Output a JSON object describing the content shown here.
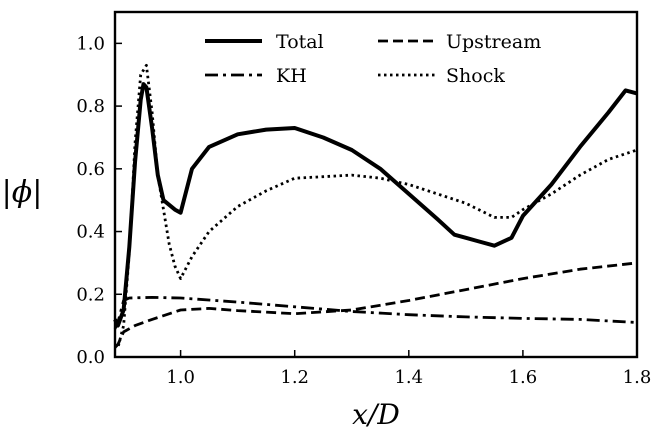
{
  "chart_data": {
    "type": "line",
    "title": "",
    "xlabel": "x/D",
    "ylabel": "|ϕ|",
    "xlim": [
      0.885,
      1.8
    ],
    "ylim": [
      0.0,
      1.1
    ],
    "xticks": [
      1.0,
      1.2,
      1.4,
      1.6,
      1.8
    ],
    "xtick_labels": [
      "1.0",
      "1.2",
      "1.4",
      "1.6",
      "1.8"
    ],
    "yticks": [
      0.0,
      0.2,
      0.4,
      0.6,
      0.8,
      1.0
    ],
    "ytick_labels": [
      "0.0",
      "0.2",
      "0.4",
      "0.6",
      "0.8",
      "1.0"
    ],
    "grid": false,
    "legend_position": "top",
    "series": [
      {
        "name": "Total",
        "style": "solid",
        "x": [
          0.885,
          0.89,
          0.9,
          0.91,
          0.92,
          0.93,
          0.935,
          0.94,
          0.95,
          0.96,
          0.97,
          0.99,
          1.0,
          1.02,
          1.05,
          1.1,
          1.15,
          1.2,
          1.25,
          1.3,
          1.35,
          1.4,
          1.45,
          1.48,
          1.5,
          1.52,
          1.55,
          1.58,
          1.6,
          1.65,
          1.7,
          1.75,
          1.78,
          1.8
        ],
        "values": [
          0.12,
          0.1,
          0.15,
          0.35,
          0.62,
          0.82,
          0.87,
          0.86,
          0.73,
          0.58,
          0.5,
          0.47,
          0.46,
          0.6,
          0.67,
          0.71,
          0.725,
          0.73,
          0.7,
          0.66,
          0.6,
          0.52,
          0.44,
          0.39,
          0.38,
          0.37,
          0.355,
          0.38,
          0.45,
          0.55,
          0.67,
          0.78,
          0.85,
          0.84
        ]
      },
      {
        "name": "KH",
        "style": "dashdot",
        "x": [
          0.885,
          0.89,
          0.9,
          0.91,
          0.95,
          1.0,
          1.1,
          1.2,
          1.3,
          1.4,
          1.5,
          1.6,
          1.7,
          1.8
        ],
        "values": [
          0.09,
          0.11,
          0.18,
          0.188,
          0.19,
          0.188,
          0.175,
          0.16,
          0.145,
          0.135,
          0.128,
          0.123,
          0.12,
          0.11
        ]
      },
      {
        "name": "Upstream",
        "style": "dashed",
        "x": [
          0.885,
          0.89,
          0.9,
          0.92,
          0.95,
          1.0,
          1.05,
          1.1,
          1.2,
          1.3,
          1.4,
          1.5,
          1.6,
          1.7,
          1.8
        ],
        "values": [
          0.03,
          0.04,
          0.08,
          0.1,
          0.12,
          0.15,
          0.155,
          0.148,
          0.138,
          0.15,
          0.18,
          0.215,
          0.25,
          0.28,
          0.3
        ]
      },
      {
        "name": "Shock",
        "style": "dotted",
        "x": [
          0.885,
          0.89,
          0.9,
          0.91,
          0.92,
          0.93,
          0.94,
          0.95,
          0.96,
          0.97,
          0.98,
          0.99,
          1.0,
          1.02,
          1.05,
          1.1,
          1.15,
          1.2,
          1.25,
          1.3,
          1.35,
          1.4,
          1.45,
          1.5,
          1.55,
          1.58,
          1.6,
          1.65,
          1.7,
          1.75,
          1.8
        ],
        "values": [
          0.04,
          0.03,
          0.1,
          0.33,
          0.68,
          0.9,
          0.93,
          0.78,
          0.58,
          0.47,
          0.36,
          0.29,
          0.25,
          0.32,
          0.4,
          0.48,
          0.53,
          0.57,
          0.575,
          0.58,
          0.57,
          0.55,
          0.52,
          0.49,
          0.445,
          0.445,
          0.47,
          0.52,
          0.58,
          0.63,
          0.66
        ]
      }
    ]
  }
}
